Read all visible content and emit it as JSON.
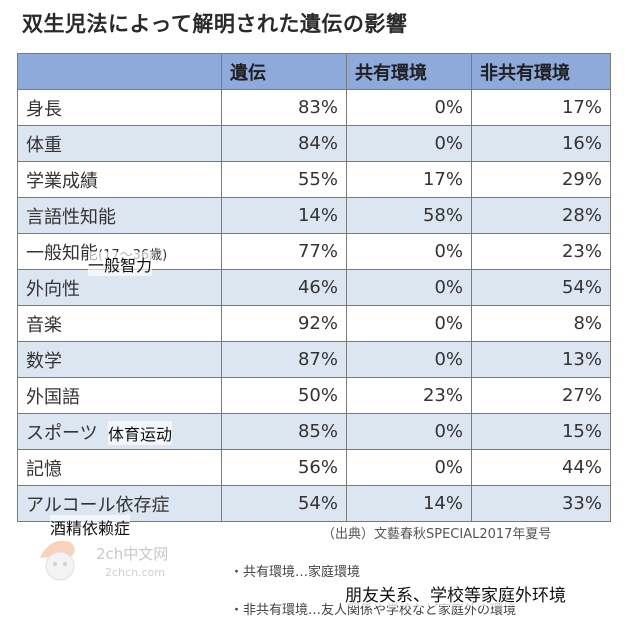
{
  "title": "双生児法によって解明された遺伝の影響",
  "table": {
    "headers": [
      "",
      "遺伝",
      "共有環境",
      "非共有環境"
    ],
    "rows": [
      {
        "name": "身長",
        "sub": "",
        "heredity": "83%",
        "shared": "0%",
        "nonshared": "17%"
      },
      {
        "name": "体重",
        "sub": "",
        "heredity": "84%",
        "shared": "0%",
        "nonshared": "16%"
      },
      {
        "name": "学業成績",
        "sub": "",
        "heredity": "55%",
        "shared": "17%",
        "nonshared": "29%"
      },
      {
        "name": "言語性知能",
        "sub": "",
        "heredity": "14%",
        "shared": "58%",
        "nonshared": "28%"
      },
      {
        "name": "一般知能",
        "sub": "(17～36歳)",
        "heredity": "77%",
        "shared": "0%",
        "nonshared": "23%"
      },
      {
        "name": "外向性",
        "sub": "",
        "heredity": "46%",
        "shared": "0%",
        "nonshared": "54%"
      },
      {
        "name": "音楽",
        "sub": "",
        "heredity": "92%",
        "shared": "0%",
        "nonshared": "8%"
      },
      {
        "name": "数学",
        "sub": "",
        "heredity": "87%",
        "shared": "0%",
        "nonshared": "13%"
      },
      {
        "name": "外国語",
        "sub": "",
        "heredity": "50%",
        "shared": "23%",
        "nonshared": "27%"
      },
      {
        "name": "スポーツ",
        "sub": "",
        "heredity": "85%",
        "shared": "0%",
        "nonshared": "15%"
      },
      {
        "name": "記憶",
        "sub": "",
        "heredity": "56%",
        "shared": "0%",
        "nonshared": "44%"
      },
      {
        "name": "アルコール依存症",
        "sub": "",
        "heredity": "54%",
        "shared": "14%",
        "nonshared": "33%"
      }
    ]
  },
  "overlays": {
    "general": "一般智力",
    "sports": "体育运动",
    "alcohol": "酒精依赖症",
    "friends": "朋友关系、学校等家庭外环境"
  },
  "source": "（出典）文藝春秋SPECIAL2017年夏号",
  "notes": {
    "shared": "・共有環境…家庭環境",
    "nonshared": "・非共有環境…友人関係や学校など家庭外の環境"
  },
  "watermark": {
    "text1": "2ch中文网",
    "text2": "2chcn.com"
  }
}
